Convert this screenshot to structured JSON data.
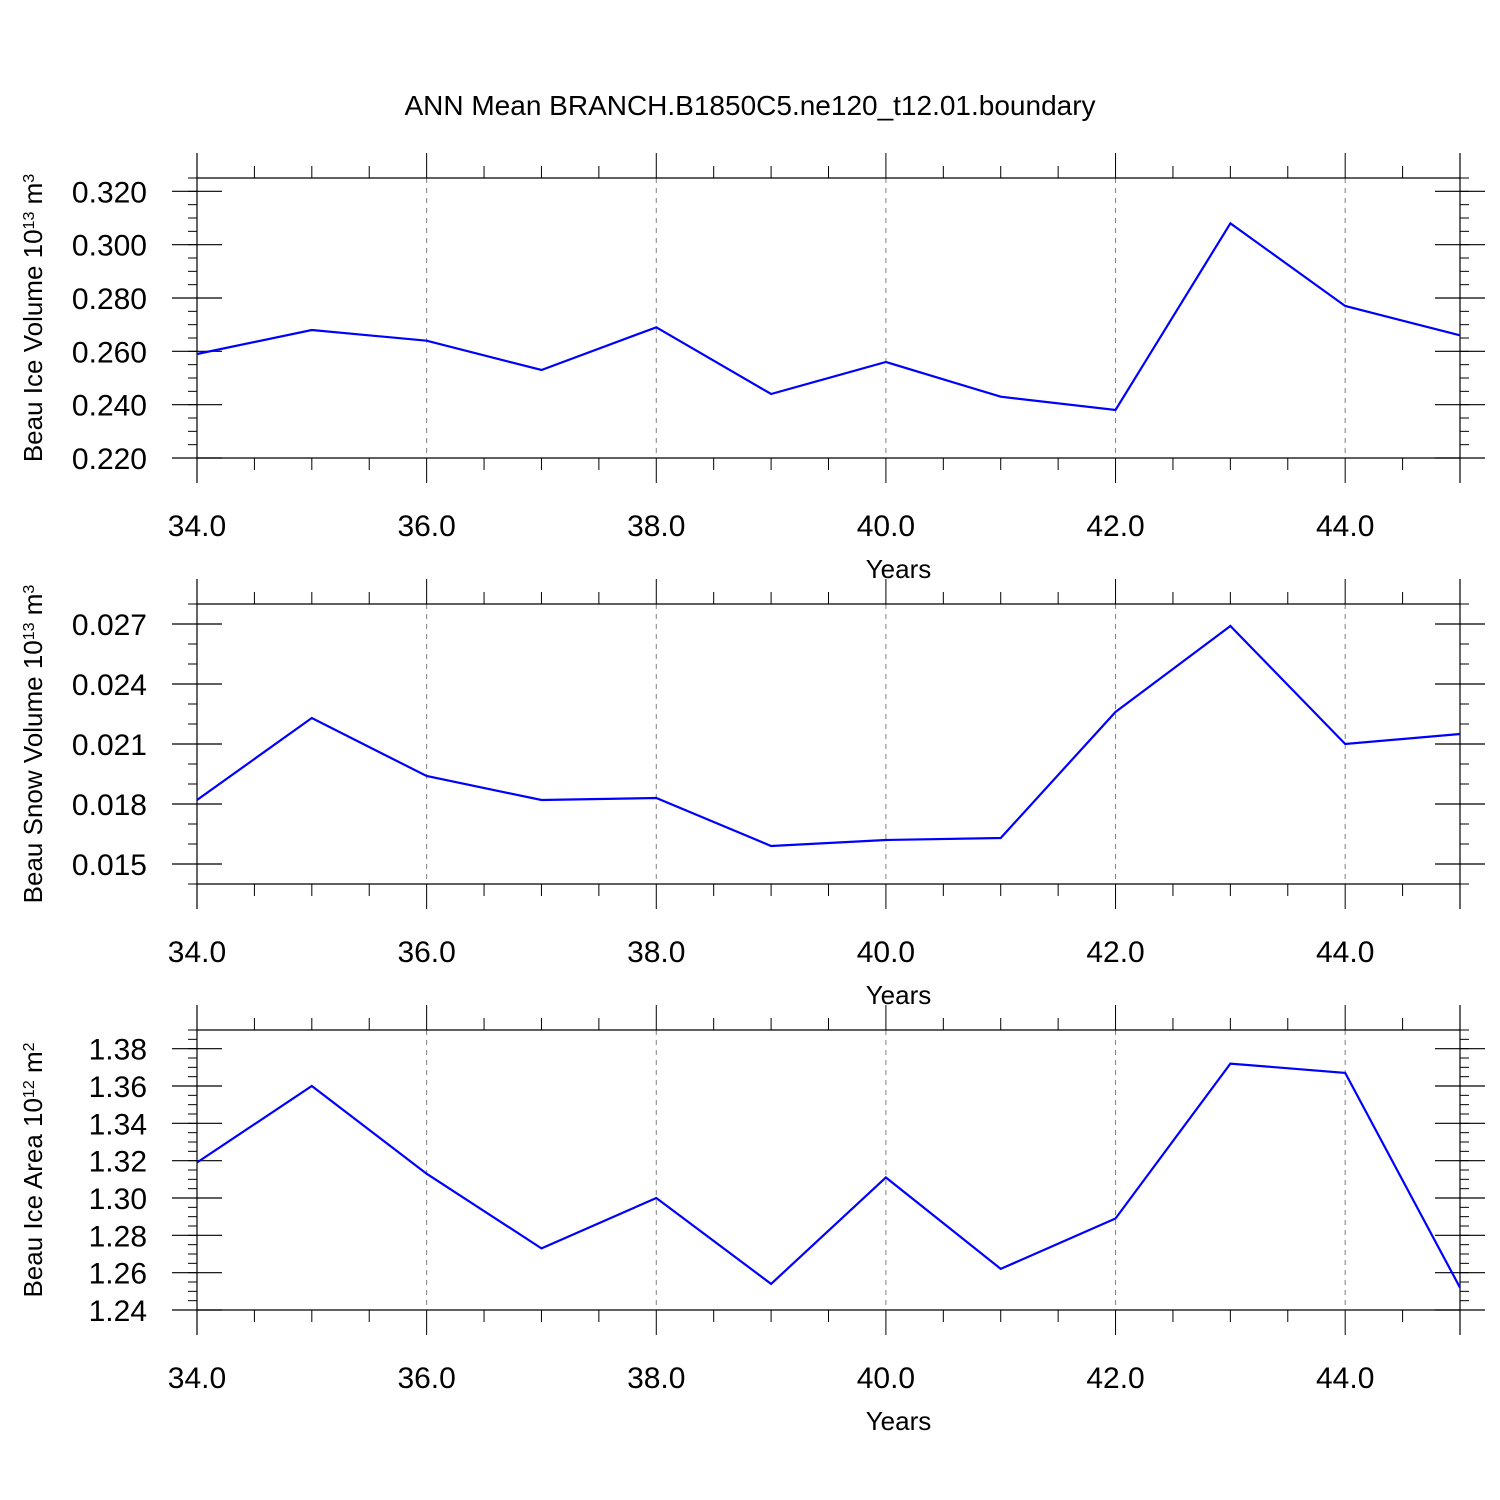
{
  "figure_title": "ANN Mean BRANCH.B1850C5.ne120_t12.01.boundary",
  "colors": {
    "line": "#0000ff",
    "axis": "#000000",
    "grid": "#808080"
  },
  "chart_data": [
    {
      "type": "line",
      "title": "",
      "xlabel": "Years",
      "ylabel": {
        "main": "Beau Ice Volume 10",
        "sup1": "13",
        "mid": " m",
        "sup2": "3"
      },
      "xlim": [
        34,
        45
      ],
      "ylim": [
        0.22,
        0.325
      ],
      "x_ticks": [
        34,
        36,
        38,
        40,
        42,
        44
      ],
      "x_tick_labels": [
        "34.0",
        "36.0",
        "38.0",
        "40.0",
        "42.0",
        "44.0"
      ],
      "y_ticks": [
        0.22,
        0.24,
        0.26,
        0.28,
        0.3,
        0.32
      ],
      "y_tick_labels": [
        "0.220",
        "0.240",
        "0.260",
        "0.280",
        "0.300",
        "0.320"
      ],
      "y_minor_step": 0.005,
      "grid": "vertical dashed at major x ticks",
      "series": [
        {
          "x": [
            34,
            35,
            36,
            37,
            38,
            39,
            40,
            41,
            42,
            43,
            44,
            45
          ],
          "values": [
            0.259,
            0.268,
            0.264,
            0.253,
            0.269,
            0.244,
            0.256,
            0.243,
            0.238,
            0.308,
            0.277,
            0.266
          ]
        }
      ]
    },
    {
      "type": "line",
      "title": "",
      "xlabel": "Years",
      "ylabel": {
        "main": "Beau Snow Volume 10",
        "sup1": "13",
        "mid": " m",
        "sup2": "3"
      },
      "xlim": [
        34,
        45
      ],
      "ylim": [
        0.014,
        0.028
      ],
      "x_ticks": [
        34,
        36,
        38,
        40,
        42,
        44
      ],
      "x_tick_labels": [
        "34.0",
        "36.0",
        "38.0",
        "40.0",
        "42.0",
        "44.0"
      ],
      "y_ticks": [
        0.015,
        0.018,
        0.021,
        0.024,
        0.027
      ],
      "y_tick_labels": [
        "0.015",
        "0.018",
        "0.021",
        "0.024",
        "0.027"
      ],
      "y_minor_step": 0.001,
      "grid": "vertical dashed at major x ticks",
      "series": [
        {
          "x": [
            34,
            35,
            36,
            37,
            38,
            39,
            40,
            41,
            42,
            43,
            44,
            45
          ],
          "values": [
            0.0182,
            0.0223,
            0.0194,
            0.0182,
            0.0183,
            0.0159,
            0.0162,
            0.0163,
            0.0226,
            0.0269,
            0.021,
            0.0215
          ]
        }
      ]
    },
    {
      "type": "line",
      "title": "",
      "xlabel": "Years",
      "ylabel": {
        "main": "Beau Ice Area 10",
        "sup1": "12",
        "mid": " m",
        "sup2": "2"
      },
      "xlim": [
        34,
        45
      ],
      "ylim": [
        1.24,
        1.39
      ],
      "x_ticks": [
        34,
        36,
        38,
        40,
        42,
        44
      ],
      "x_tick_labels": [
        "34.0",
        "36.0",
        "38.0",
        "40.0",
        "42.0",
        "44.0"
      ],
      "y_ticks": [
        1.24,
        1.26,
        1.28,
        1.3,
        1.32,
        1.34,
        1.36,
        1.38
      ],
      "y_tick_labels": [
        "1.24",
        "1.26",
        "1.28",
        "1.30",
        "1.32",
        "1.34",
        "1.36",
        "1.38"
      ],
      "y_minor_step": 0.005,
      "grid": "vertical dashed at major x ticks",
      "series": [
        {
          "x": [
            34,
            35,
            36,
            37,
            38,
            39,
            40,
            41,
            42,
            43,
            44,
            45
          ],
          "values": [
            1.319,
            1.36,
            1.313,
            1.273,
            1.3,
            1.254,
            1.311,
            1.262,
            1.289,
            1.372,
            1.367,
            1.252
          ]
        }
      ]
    }
  ]
}
